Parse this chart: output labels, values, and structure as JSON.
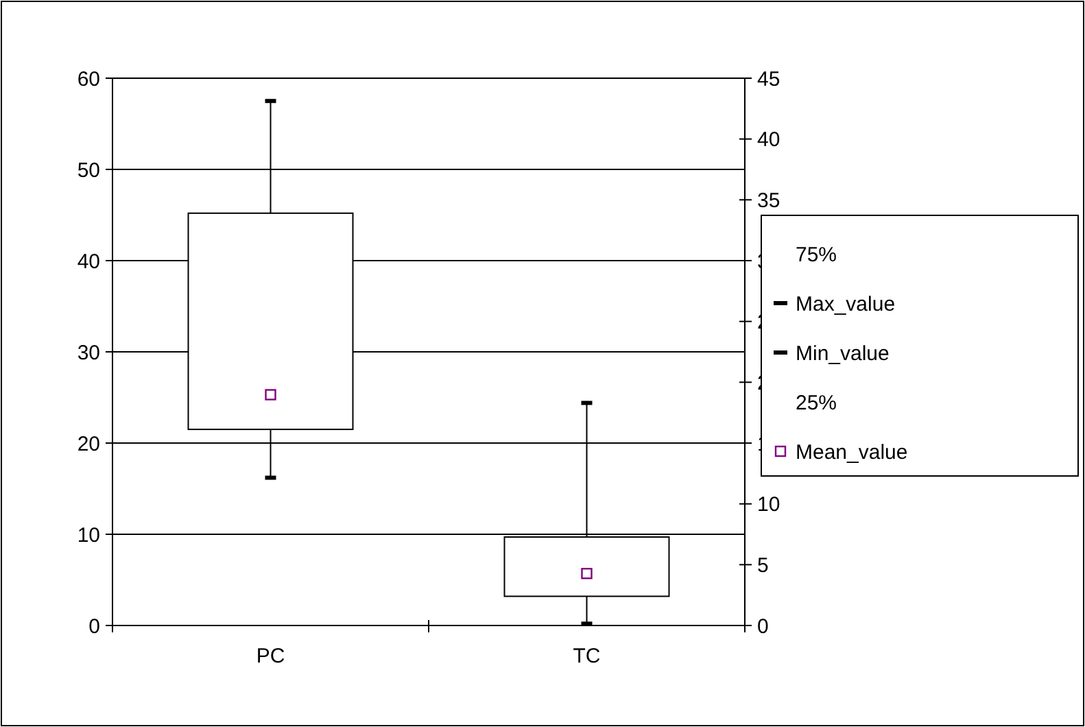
{
  "chart_data": {
    "type": "candlestick",
    "categories": [
      "PC",
      "TC"
    ],
    "ohlc": [
      [
        45.2,
        57.5,
        16.2,
        21.5
      ],
      [
        9.7,
        24.4,
        0.2,
        3.2
      ]
    ],
    "annotations": [
      "75%",
      "Max_value",
      "Min_value",
      "25%"
    ],
    "series": [
      {
        "name": "Mean_value",
        "type": "scatter",
        "marker": "square",
        "color": "#800080",
        "values": [
          25.3,
          5.7
        ]
      }
    ],
    "ylim": [
      0,
      60
    ],
    "yticks": [
      0,
      10,
      20,
      30,
      40,
      50,
      60
    ],
    "y2lim": [
      0,
      45
    ],
    "y2ticks": [
      0,
      5,
      10,
      15,
      20,
      25,
      30,
      35,
      40,
      45
    ],
    "grid": "y",
    "legend": "right"
  }
}
